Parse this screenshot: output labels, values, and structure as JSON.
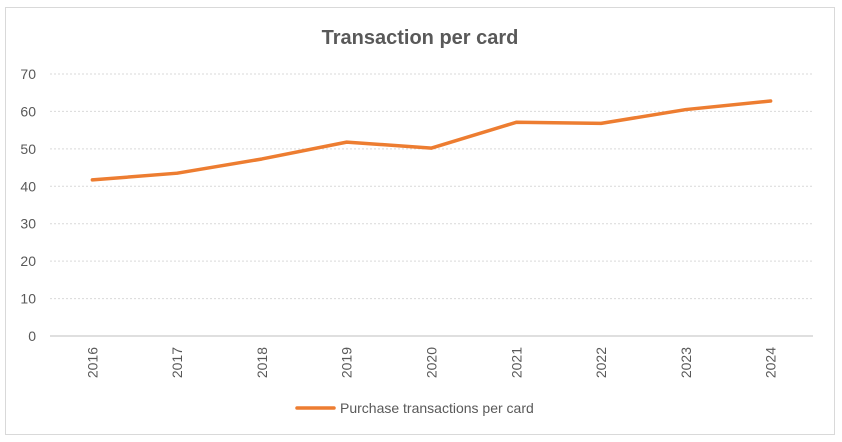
{
  "chart_data": {
    "type": "line",
    "title": "Transaction per card",
    "xlabel": "",
    "ylabel": "",
    "categories": [
      "2016",
      "2017",
      "2018",
      "2019",
      "2020",
      "2021",
      "2022",
      "2023",
      "2024"
    ],
    "series": [
      {
        "name": "Purchase transactions per card",
        "color": "#ED7D31",
        "values": [
          41.7,
          43.5,
          47.3,
          51.8,
          50.2,
          57.1,
          56.8,
          60.5,
          62.8
        ]
      }
    ],
    "ylim": [
      0,
      70
    ],
    "yticks": [
      "0",
      "10",
      "20",
      "30",
      "40",
      "50",
      "60",
      "70"
    ],
    "grid": true,
    "legend_position": "bottom"
  }
}
